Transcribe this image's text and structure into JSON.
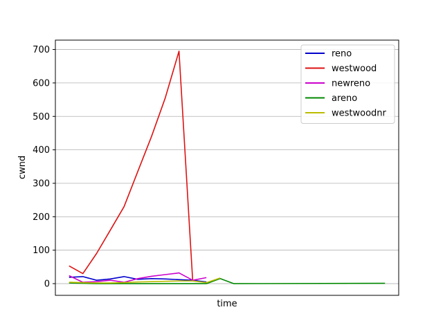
{
  "chart_data": {
    "type": "line",
    "title": "",
    "xlabel": "time",
    "ylabel": "cwnd",
    "xlim": [
      0,
      25
    ],
    "ylim": [
      -35,
      728
    ],
    "yticks": [
      0,
      100,
      200,
      300,
      400,
      500,
      600,
      700
    ],
    "ytick_labels": [
      "0",
      "100",
      "200",
      "300",
      "400",
      "500",
      "600",
      "700"
    ],
    "grid": "horizontal",
    "legend_position": "top-right",
    "colors": {
      "reno": "#0000cc",
      "westwood": "#dd1111",
      "newreno": "#cc00cc",
      "areno": "#008800",
      "westwoodnr": "#bbbb00"
    },
    "series": [
      {
        "name": "reno",
        "color": "#0000cc",
        "x": [
          1,
          2,
          3,
          4,
          5,
          6,
          7,
          8,
          9,
          10,
          11
        ],
        "y": [
          19,
          21,
          10,
          14,
          21,
          13,
          15,
          14,
          12,
          10,
          5
        ]
      },
      {
        "name": "westwood",
        "color": "#dd1111",
        "x": [
          1,
          2,
          3,
          4,
          5,
          6,
          7,
          8,
          9,
          10
        ],
        "y": [
          53,
          30,
          90,
          160,
          230,
          335,
          440,
          555,
          695,
          8
        ]
      },
      {
        "name": "newreno",
        "color": "#cc00cc",
        "x": [
          1,
          2,
          3,
          4,
          5,
          6,
          7,
          8,
          9,
          10,
          11
        ],
        "y": [
          24,
          4,
          6,
          10,
          4,
          15,
          22,
          27,
          32,
          10,
          18
        ]
      },
      {
        "name": "areno",
        "color": "#008800",
        "x": [
          1,
          2,
          3,
          4,
          5,
          6,
          7,
          8,
          9,
          10,
          11,
          12,
          13,
          24
        ],
        "y": [
          2,
          1,
          0,
          0,
          0,
          0,
          0,
          0,
          0,
          0,
          0,
          15,
          0,
          1
        ]
      },
      {
        "name": "westwoodnr",
        "color": "#bbbb00",
        "x": [
          1,
          2,
          3,
          4,
          5,
          6,
          7,
          8,
          9,
          10,
          11,
          12
        ],
        "y": [
          4,
          3,
          2,
          2,
          3,
          5,
          6,
          7,
          8,
          8,
          3,
          17
        ]
      }
    ]
  }
}
